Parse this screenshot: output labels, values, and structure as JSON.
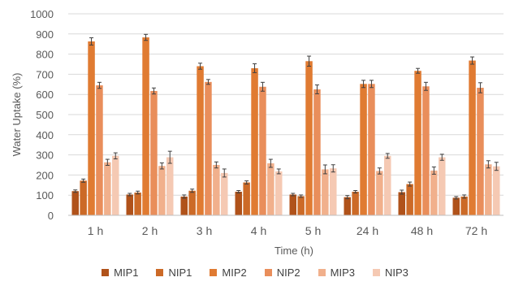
{
  "chart_data": {
    "type": "bar",
    "title": "",
    "xlabel": "Time (h)",
    "ylabel": "Water Uptake (%)",
    "ylim": [
      0,
      1000
    ],
    "yticks": [
      "0",
      "100",
      "200",
      "300",
      "400",
      "500",
      "600",
      "700",
      "800",
      "900",
      "1000"
    ],
    "categories": [
      "1 h",
      "2 h",
      "3 h",
      "4 h",
      "5 h",
      "24 h",
      "48 h",
      "72 h"
    ],
    "grid": true,
    "legend_position": "bottom",
    "series": [
      {
        "name": "MIP1",
        "color": "#b0521a",
        "values": [
          120,
          103,
          93,
          117,
          103,
          90,
          115,
          87
        ],
        "errors": [
          6,
          6,
          8,
          6,
          6,
          8,
          10,
          6
        ]
      },
      {
        "name": "NIP1",
        "color": "#cc6a27",
        "values": [
          172,
          113,
          122,
          163,
          95,
          117,
          155,
          93
        ],
        "errors": [
          8,
          7,
          8,
          8,
          6,
          6,
          10,
          8
        ]
      },
      {
        "name": "MIP2",
        "color": "#e07b32",
        "values": [
          863,
          883,
          740,
          730,
          765,
          652,
          717,
          768
        ],
        "errors": [
          18,
          15,
          15,
          22,
          25,
          18,
          12,
          18
        ]
      },
      {
        "name": "NIP2",
        "color": "#e98e5b",
        "values": [
          645,
          617,
          662,
          638,
          625,
          652,
          640,
          633
        ],
        "errors": [
          15,
          15,
          12,
          22,
          22,
          18,
          20,
          25
        ]
      },
      {
        "name": "MIP3",
        "color": "#f1b08c",
        "values": [
          263,
          245,
          250,
          258,
          228,
          220,
          222,
          253
        ],
        "errors": [
          15,
          15,
          15,
          20,
          22,
          15,
          18,
          18
        ]
      },
      {
        "name": "NIP3",
        "color": "#f5c9b3",
        "values": [
          295,
          288,
          210,
          218,
          233,
          295,
          288,
          243
        ],
        "errors": [
          15,
          30,
          20,
          12,
          18,
          12,
          15,
          20
        ]
      }
    ]
  }
}
